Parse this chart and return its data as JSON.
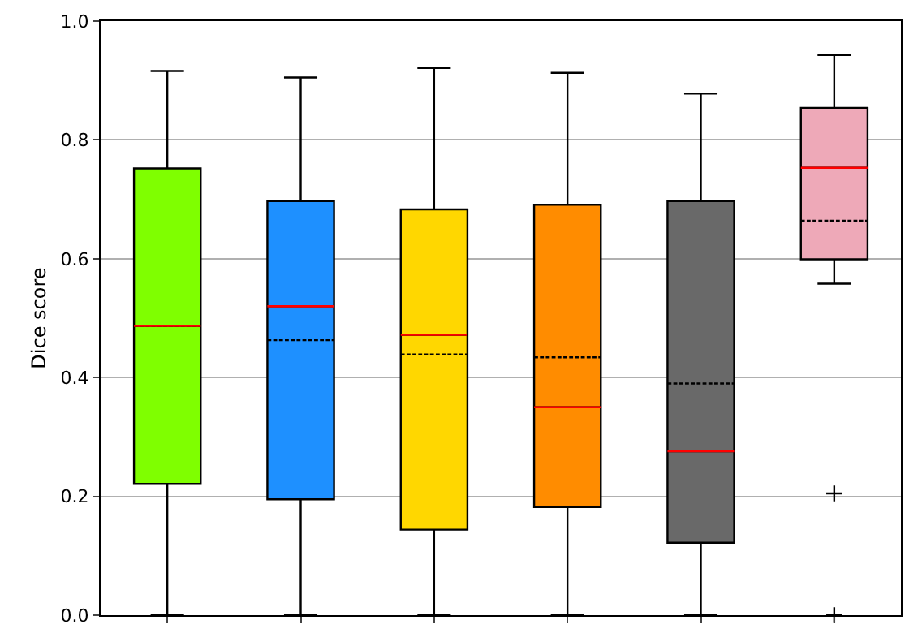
{
  "chart_data": {
    "type": "box",
    "ylabel": "Dice score",
    "categories": [
      null,
      null,
      null,
      null,
      null,
      null
    ],
    "boxes": [
      {
        "low": 0,
        "q1": 0.221,
        "median": 0.487,
        "q3": 0.752,
        "high": 0.916,
        "mean": 0.487
      },
      {
        "low": 0,
        "q1": 0.195,
        "median": 0.52,
        "q3": 0.697,
        "high": 0.905,
        "mean": 0.463
      },
      {
        "low": 0,
        "q1": 0.144,
        "median": 0.472,
        "q3": 0.683,
        "high": 0.921,
        "mean": 0.439
      },
      {
        "low": 0,
        "q1": 0.182,
        "median": 0.35,
        "q3": 0.691,
        "high": 0.913,
        "mean": 0.434
      },
      {
        "low": 0,
        "q1": 0.122,
        "median": 0.276,
        "q3": 0.697,
        "high": 0.878,
        "mean": 0.39
      },
      {
        "low": 0.558,
        "q1": 0.599,
        "median": 0.753,
        "q3": 0.854,
        "high": 0.943,
        "mean": 0.664,
        "outliers": [
          0.205,
          0.0
        ]
      }
    ],
    "colors": [
      "#7fff00",
      "#1e90ff",
      "#ffd700",
      "#ff8c00",
      "#696969",
      "#eea9b8"
    ],
    "ylim": [
      0,
      1
    ],
    "yticks": [
      {
        "value": 0,
        "label": "0.0"
      },
      {
        "value": 0.2,
        "label": "0.2"
      },
      {
        "value": 0.4,
        "label": "0.4"
      },
      {
        "value": 0.6,
        "label": "0.6"
      },
      {
        "value": 0.8,
        "label": "0.8"
      },
      {
        "value": 1,
        "label": "1.0"
      }
    ],
    "grid": "y",
    "tick_labels": "y",
    "marker": "cross"
  }
}
